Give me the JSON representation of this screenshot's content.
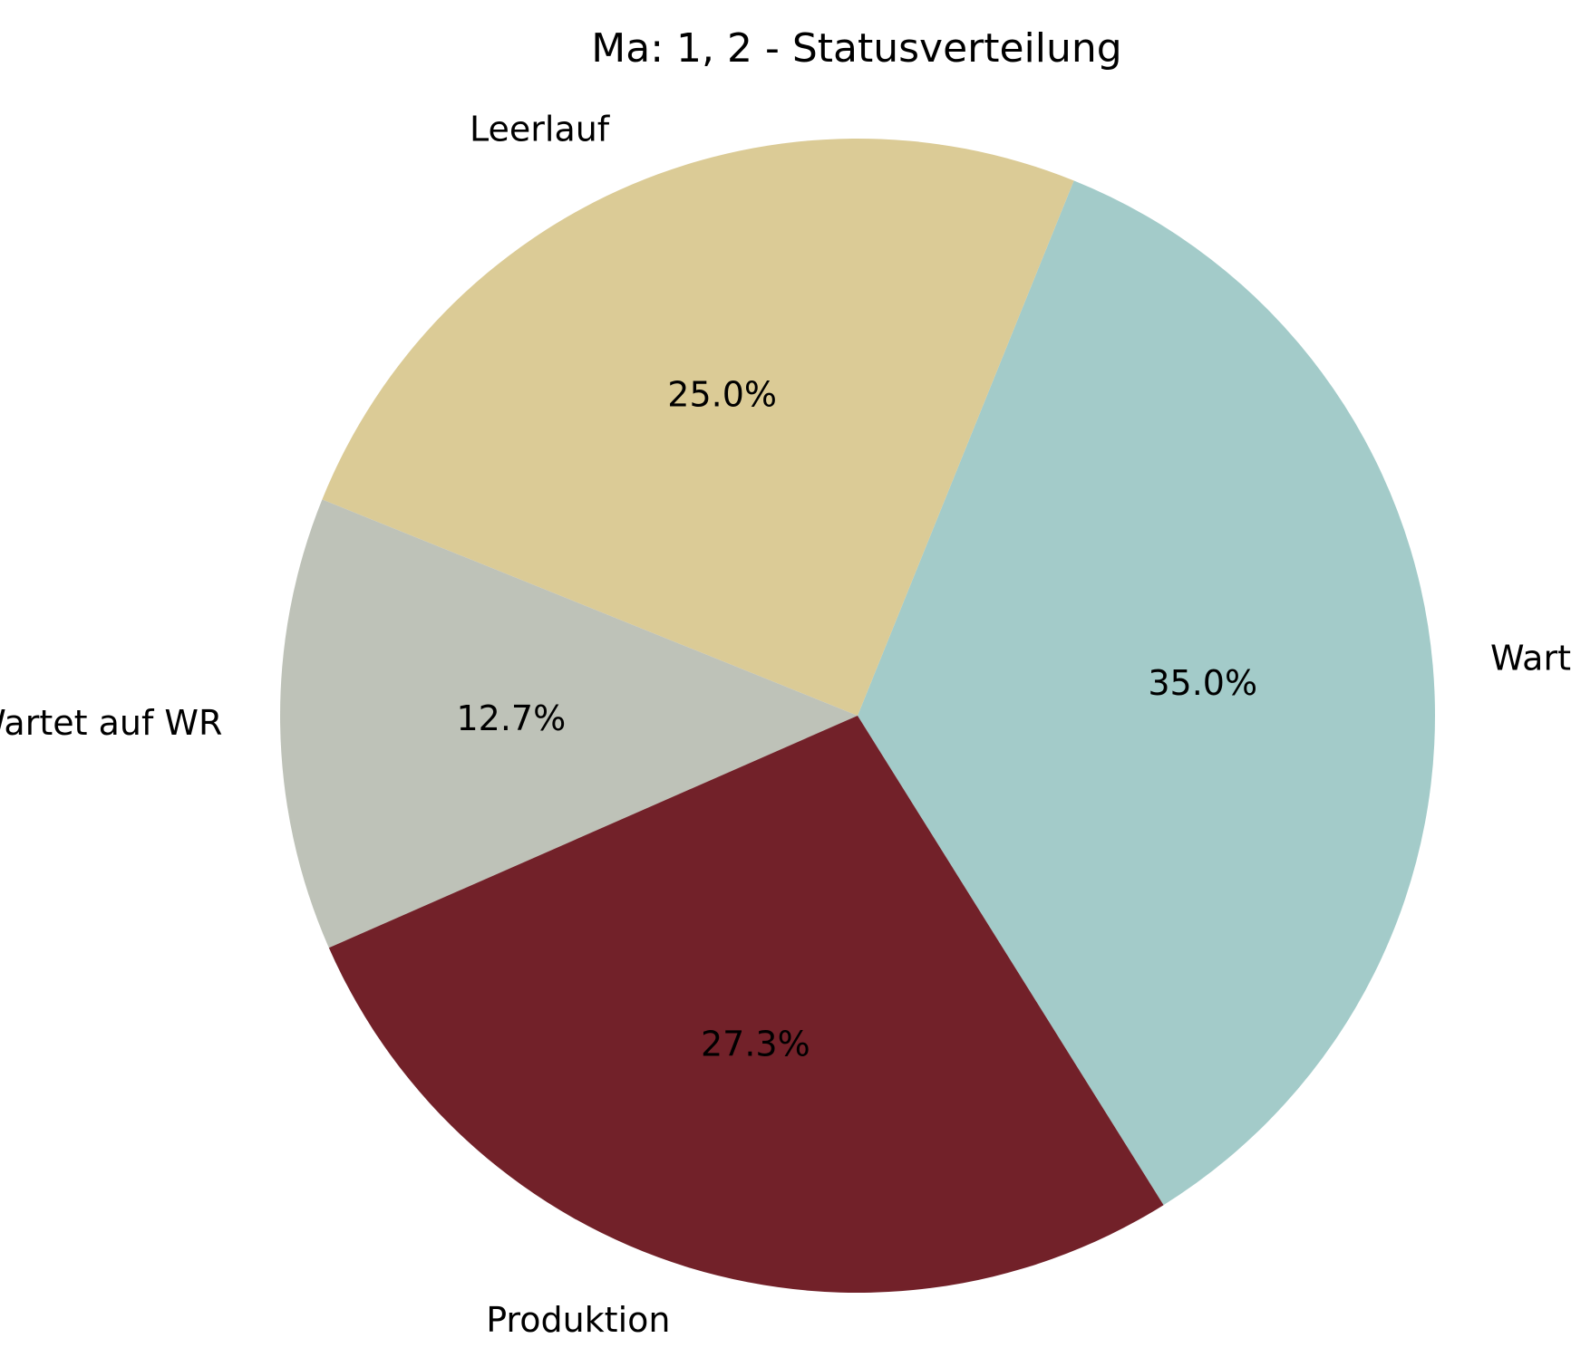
{
  "chart_data": {
    "type": "pie",
    "title": "Ma: 1, 2 - Statusverteilung",
    "slices": [
      {
        "label": "Wartet auf Material",
        "value": 35.0,
        "pct_label": "35.0%",
        "color": "#a3cbc9"
      },
      {
        "label": "Leerlauf",
        "value": 25.0,
        "pct_label": "25.0%",
        "color": "#dbcb96"
      },
      {
        "label": "Wartet auf WR",
        "value": 12.7,
        "pct_label": "12.7%",
        "color": "#bec2b8"
      },
      {
        "label": "Produktion",
        "value": 27.3,
        "pct_label": "27.3%",
        "color": "#722129"
      }
    ],
    "start_angle_deg": -58,
    "direction": "counterclockwise",
    "legend": "none"
  }
}
